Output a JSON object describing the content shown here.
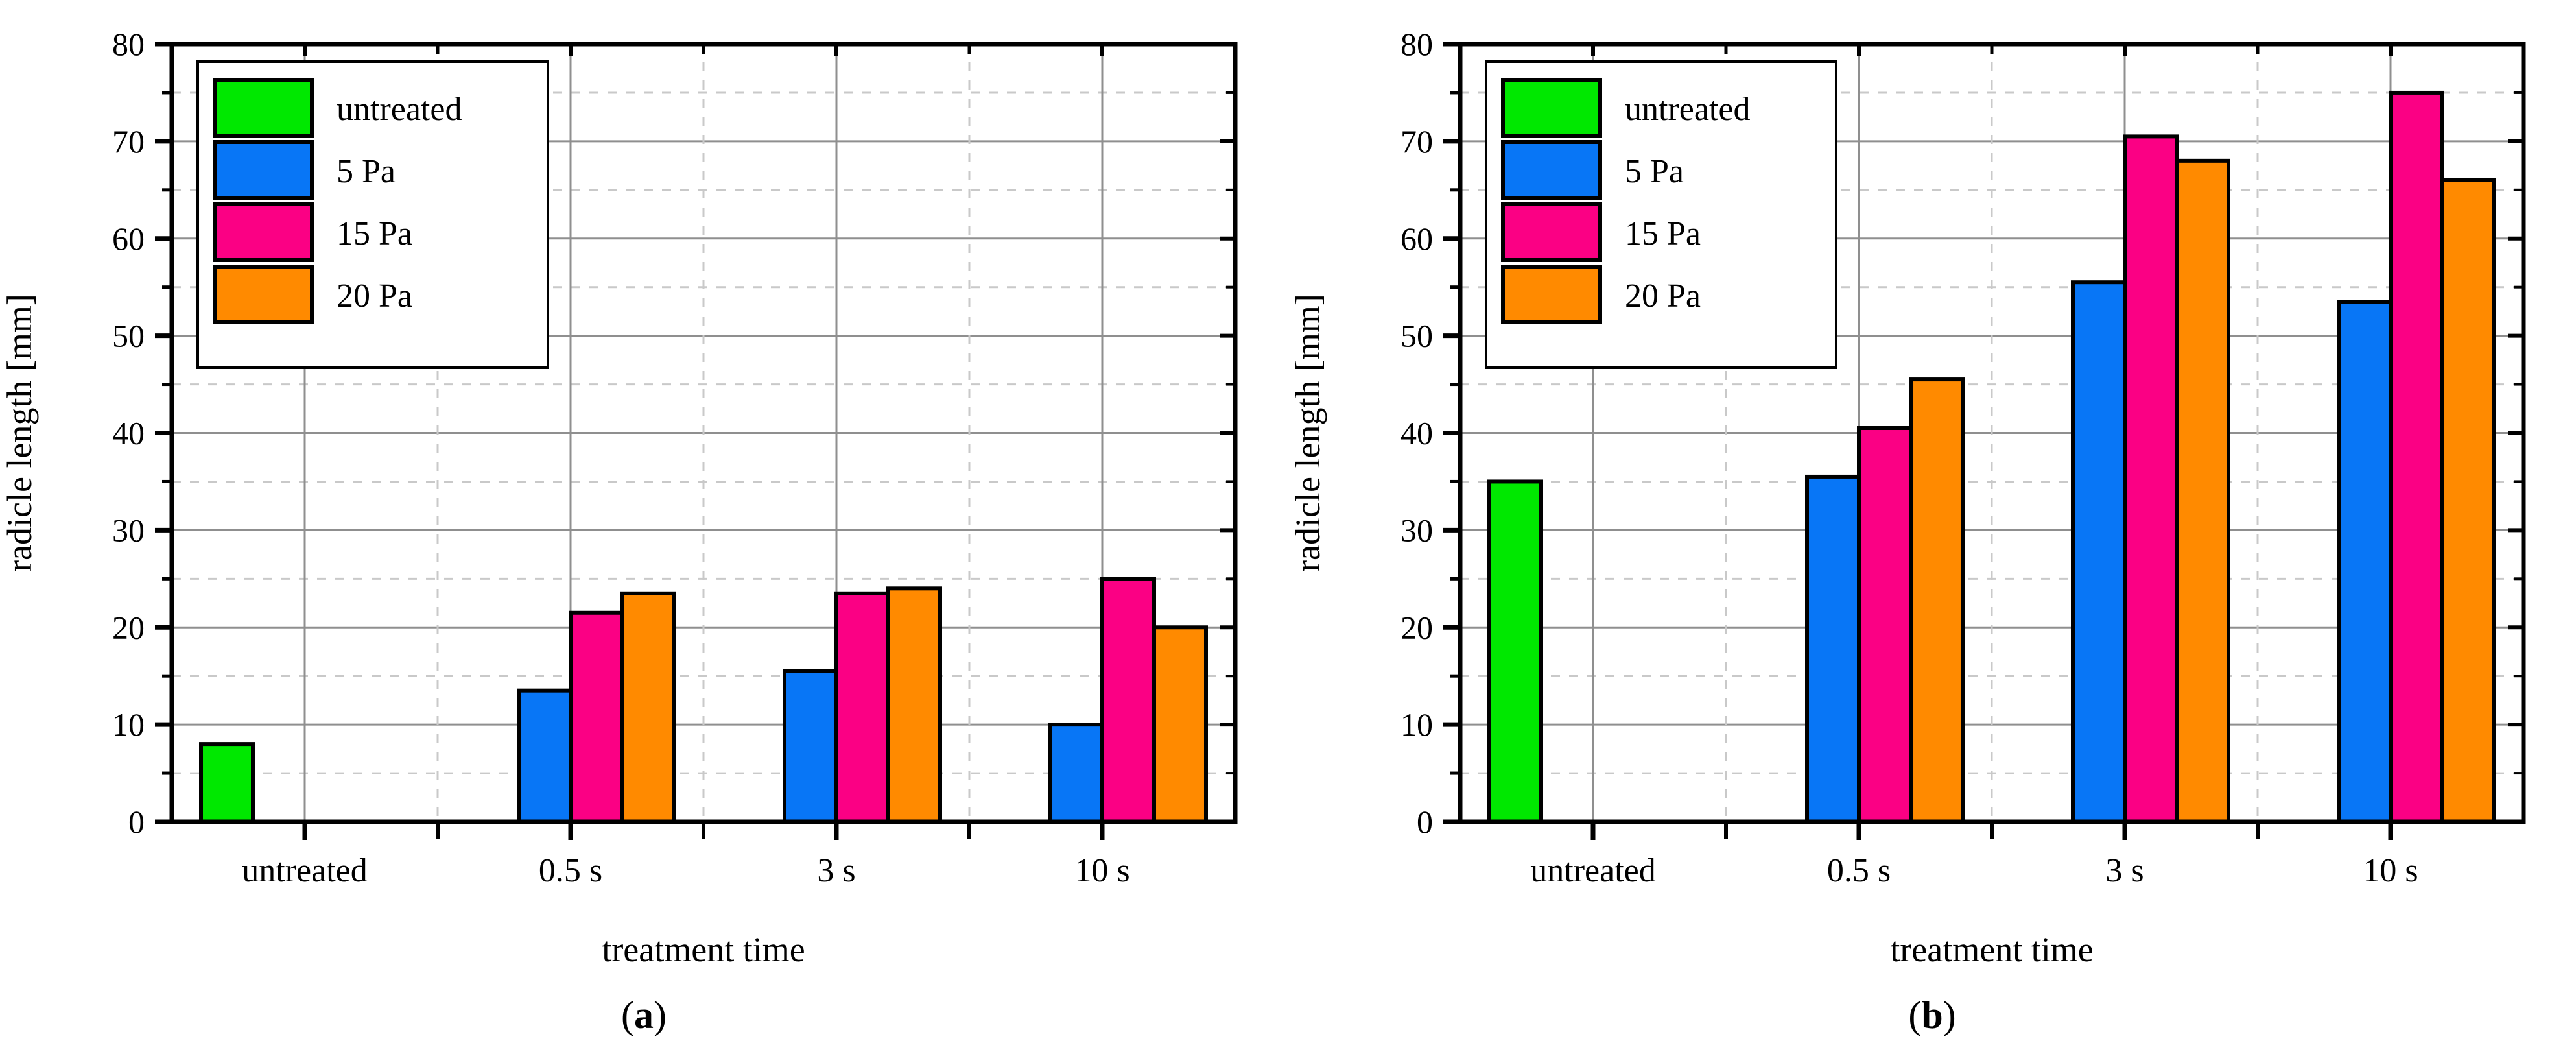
{
  "figure": {
    "caption_a": {
      "open": "(",
      "letter": "a",
      "close": ")"
    },
    "caption_b": {
      "open": "(",
      "letter": "b",
      "close": ")"
    }
  },
  "colors": {
    "untreated": "#00E800",
    "pa5": "#0876F6",
    "pa15": "#FB0084",
    "pa20": "#FF8A00",
    "grid_major": "#8F8F8F",
    "grid_minor": "#C9C9C9",
    "frame": "#000000"
  },
  "chart_data": [
    {
      "type": "bar",
      "panel": "a",
      "title": "",
      "xlabel": "treatment time",
      "ylabel": "radicle length [mm]",
      "ylim": [
        0,
        80
      ],
      "yticks": [
        0,
        10,
        20,
        30,
        40,
        50,
        60,
        70,
        80
      ],
      "yminor_step": 5,
      "grid": {
        "major": "solid",
        "minor": "dashed",
        "legend_position": "top-left"
      },
      "categories": [
        "untreated",
        "0.5 s",
        "3 s",
        "10 s"
      ],
      "series": [
        {
          "name": "untreated",
          "color": "#00E800",
          "values": [
            8,
            null,
            null,
            null
          ]
        },
        {
          "name": "5 Pa",
          "color": "#0876F6",
          "values": [
            null,
            13.5,
            15.5,
            10
          ]
        },
        {
          "name": "15 Pa",
          "color": "#FB0084",
          "values": [
            null,
            21.5,
            23.5,
            25
          ]
        },
        {
          "name": "20 Pa",
          "color": "#FF8A00",
          "values": [
            null,
            23.5,
            24,
            20
          ]
        }
      ]
    },
    {
      "type": "bar",
      "panel": "b",
      "title": "",
      "xlabel": "treatment time",
      "ylabel": "radicle length [mm]",
      "ylim": [
        0,
        80
      ],
      "yticks": [
        0,
        10,
        20,
        30,
        40,
        50,
        60,
        70,
        80
      ],
      "yminor_step": 5,
      "grid": {
        "major": "solid",
        "minor": "dashed",
        "legend_position": "top-left"
      },
      "categories": [
        "untreated",
        "0.5 s",
        "3 s",
        "10 s"
      ],
      "series": [
        {
          "name": "untreated",
          "color": "#00E800",
          "values": [
            35,
            null,
            null,
            null
          ]
        },
        {
          "name": "5 Pa",
          "color": "#0876F6",
          "values": [
            null,
            35.5,
            55.5,
            53.5
          ]
        },
        {
          "name": "15 Pa",
          "color": "#FB0084",
          "values": [
            null,
            40.5,
            70.5,
            75
          ]
        },
        {
          "name": "20 Pa",
          "color": "#FF8A00",
          "values": [
            null,
            45.5,
            68,
            66
          ]
        }
      ]
    }
  ]
}
